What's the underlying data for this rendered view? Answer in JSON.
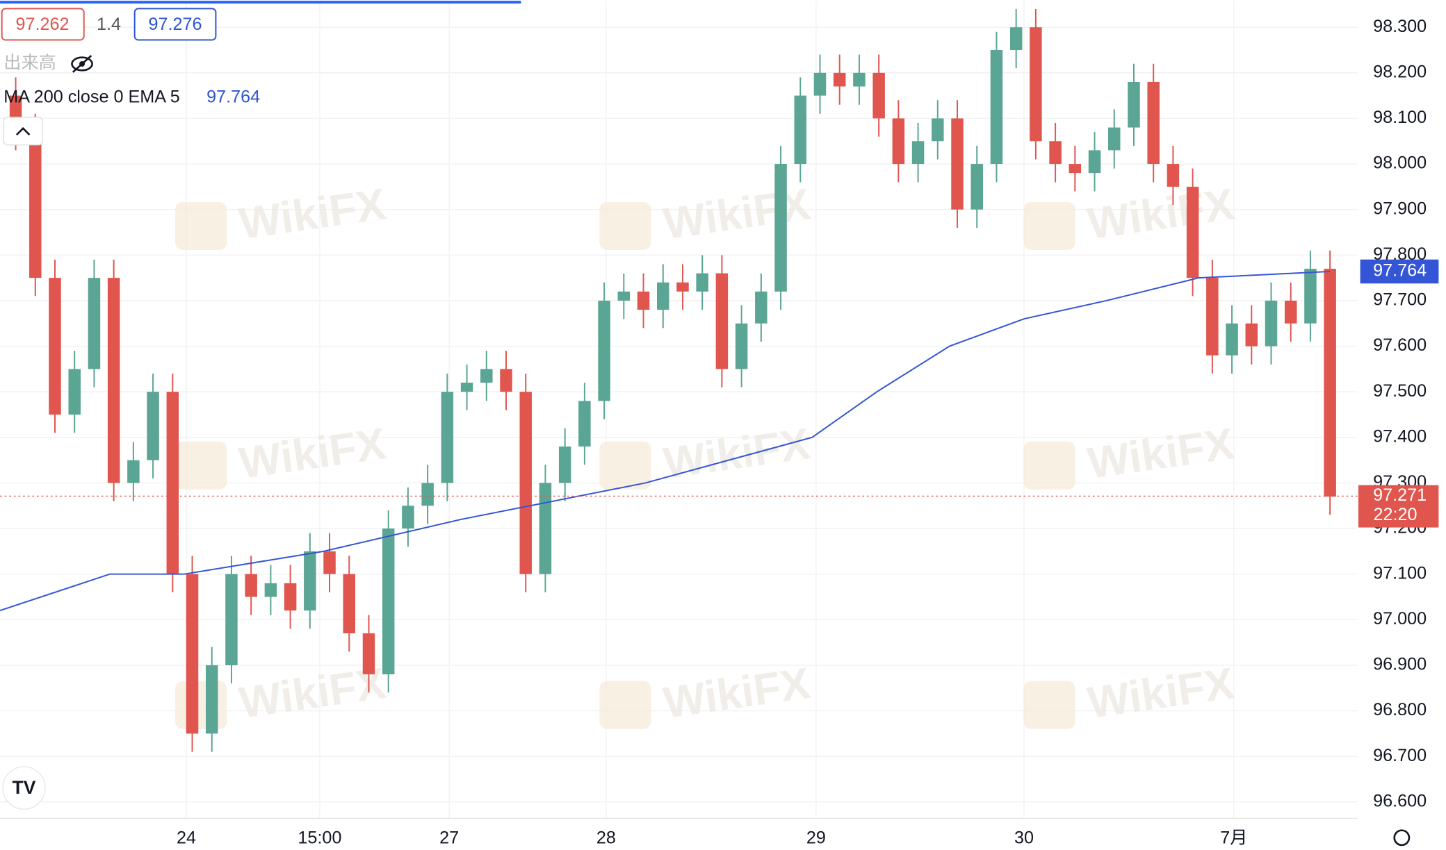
{
  "chart_data": {
    "type": "candlestick",
    "quote": {
      "bid": "97.262",
      "spread": "1.4",
      "ask": "97.276"
    },
    "volume_label": "出来高",
    "watermark": "WikiFX",
    "open": [
      98.15,
      98.07,
      97.75,
      97.45,
      97.55,
      97.75,
      97.3,
      97.35,
      97.5,
      97.1,
      96.75,
      96.9,
      97.1,
      97.05,
      97.08,
      97.02,
      97.15,
      97.1,
      96.97,
      96.88,
      97.2,
      97.25,
      97.3,
      97.5,
      97.52,
      97.55,
      97.5,
      97.1,
      97.3,
      97.38,
      97.48,
      97.7,
      97.72,
      97.68,
      97.74,
      97.72,
      97.76,
      97.55,
      97.65,
      97.72,
      98.0,
      98.15,
      98.2,
      98.17,
      98.2,
      98.1,
      98.0,
      98.05,
      98.1,
      97.9,
      98.0,
      98.25,
      98.3,
      98.05,
      98.0,
      97.98,
      98.03,
      98.08,
      98.18,
      98.0,
      97.95,
      97.75,
      97.58,
      97.65,
      97.6,
      97.7,
      97.65,
      97.77
    ],
    "high": [
      98.19,
      98.11,
      97.79,
      97.59,
      97.79,
      97.79,
      97.39,
      97.54,
      97.54,
      97.14,
      96.94,
      97.14,
      97.14,
      97.12,
      97.12,
      97.19,
      97.19,
      97.14,
      97.01,
      97.24,
      97.29,
      97.34,
      97.54,
      97.56,
      97.59,
      97.59,
      97.54,
      97.34,
      97.42,
      97.52,
      97.74,
      97.76,
      97.76,
      97.78,
      97.78,
      97.8,
      97.8,
      97.69,
      97.76,
      98.04,
      98.19,
      98.24,
      98.24,
      98.24,
      98.24,
      98.14,
      98.09,
      98.14,
      98.14,
      98.04,
      98.29,
      98.34,
      98.34,
      98.09,
      98.04,
      98.07,
      98.12,
      98.22,
      98.22,
      98.04,
      97.99,
      97.79,
      97.69,
      97.69,
      97.74,
      97.74,
      97.81,
      97.81
    ],
    "low": [
      98.03,
      97.71,
      97.41,
      97.41,
      97.51,
      97.26,
      97.26,
      97.31,
      97.06,
      96.71,
      96.71,
      96.86,
      97.01,
      97.01,
      96.98,
      96.98,
      97.06,
      96.93,
      96.84,
      96.84,
      97.16,
      97.21,
      97.26,
      97.46,
      97.48,
      97.46,
      97.06,
      97.06,
      97.26,
      97.34,
      97.44,
      97.66,
      97.64,
      97.64,
      97.68,
      97.68,
      97.51,
      97.51,
      97.61,
      97.68,
      97.96,
      98.11,
      98.13,
      98.13,
      98.06,
      97.96,
      97.96,
      98.01,
      97.86,
      97.86,
      97.96,
      98.21,
      98.01,
      97.96,
      97.94,
      97.94,
      97.99,
      98.04,
      97.96,
      97.91,
      97.71,
      97.54,
      97.54,
      97.56,
      97.56,
      97.61,
      97.61,
      97.23
    ],
    "close": [
      98.07,
      97.75,
      97.45,
      97.55,
      97.75,
      97.3,
      97.35,
      97.5,
      97.1,
      96.75,
      96.9,
      97.1,
      97.05,
      97.08,
      97.02,
      97.15,
      97.1,
      96.97,
      96.88,
      97.2,
      97.25,
      97.3,
      97.5,
      97.52,
      97.55,
      97.5,
      97.1,
      97.3,
      97.38,
      97.48,
      97.7,
      97.72,
      97.68,
      97.74,
      97.72,
      97.76,
      97.55,
      97.65,
      97.72,
      98.0,
      98.15,
      98.2,
      98.17,
      98.2,
      98.1,
      98.0,
      98.05,
      98.1,
      97.9,
      98.0,
      98.25,
      98.3,
      98.05,
      98.0,
      97.98,
      98.03,
      98.08,
      98.18,
      98.0,
      97.95,
      97.75,
      97.58,
      97.65,
      97.6,
      97.7,
      97.65,
      97.77,
      97.27
    ],
    "up_color": "#5aa593",
    "down_color": "#e0564f",
    "ma": {
      "name": "MA 200 close 0 EMA 5",
      "color": "#3355d6",
      "x": [
        -0.8,
        4.8,
        8.6,
        15.7,
        22.7,
        32.1,
        40.6,
        43.9,
        47.6,
        51.4,
        55.6,
        60.3,
        67
      ],
      "values": [
        97.02,
        97.1,
        97.1,
        97.15,
        97.22,
        97.3,
        97.4,
        97.5,
        97.6,
        97.66,
        97.7,
        97.75,
        97.764
      ],
      "value_labels": [
        null,
        null,
        null,
        null,
        null,
        null,
        null,
        null,
        null,
        null,
        null,
        null,
        "97.764"
      ]
    },
    "last_price": {
      "value": 97.271,
      "label": "97.271",
      "countdown": "22:20"
    },
    "xlim": [
      -0.8,
      68.4
    ],
    "xticks": [
      {
        "value": 8.7,
        "label": "24"
      },
      {
        "value": 15.5,
        "label": "15:00"
      },
      {
        "value": 22.1,
        "label": "27"
      },
      {
        "value": 30.1,
        "label": "28"
      },
      {
        "value": 40.8,
        "label": "29"
      },
      {
        "value": 51.4,
        "label": "30"
      },
      {
        "value": 62.1,
        "label": "7月"
      }
    ],
    "ylim": [
      96.564,
      98.357
    ],
    "yticks": [
      {
        "value": 96.6,
        "label": "96.600"
      },
      {
        "value": 96.7,
        "label": "96.700"
      },
      {
        "value": 96.8,
        "label": "96.800"
      },
      {
        "value": 96.9,
        "label": "96.900"
      },
      {
        "value": 97,
        "label": "97.000"
      },
      {
        "value": 97.1,
        "label": "97.100"
      },
      {
        "value": 97.2,
        "label": "97.200"
      },
      {
        "value": 97.3,
        "label": "97.300"
      },
      {
        "value": 97.4,
        "label": "97.400"
      },
      {
        "value": 97.5,
        "label": "97.500"
      },
      {
        "value": 97.6,
        "label": "97.600"
      },
      {
        "value": 97.7,
        "label": "97.700"
      },
      {
        "value": 97.8,
        "label": "97.800"
      },
      {
        "value": 97.9,
        "label": "97.900"
      },
      {
        "value": 98,
        "label": "98.000"
      },
      {
        "value": 98.1,
        "label": "98.100"
      },
      {
        "value": 98.2,
        "label": "98.200"
      },
      {
        "value": 98.3,
        "label": "98.300"
      }
    ],
    "grid": true
  }
}
